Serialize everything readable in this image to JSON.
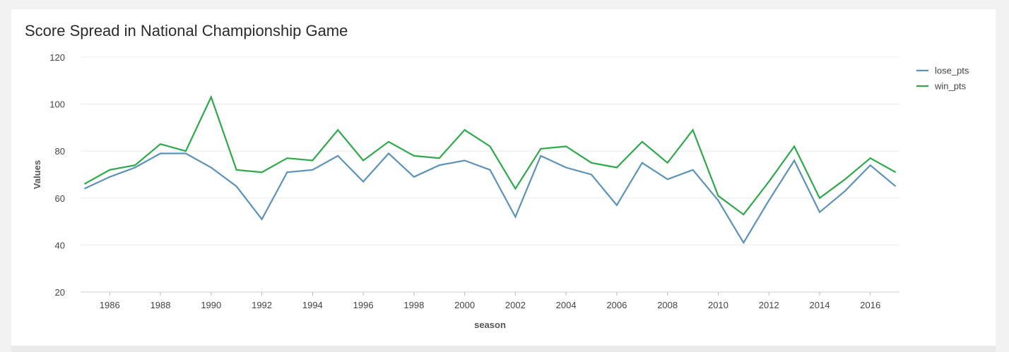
{
  "chart_data": {
    "type": "line",
    "title": "Score Spread in National Championship Game",
    "xlabel": "season",
    "ylabel": "Values",
    "ylim": [
      20,
      120
    ],
    "yticks": [
      "20",
      "40",
      "60",
      "80",
      "100",
      "120"
    ],
    "xticks": [
      "1986",
      "1988",
      "1990",
      "1992",
      "1994",
      "1996",
      "1998",
      "2000",
      "2002",
      "2004",
      "2006",
      "2008",
      "2010",
      "2012",
      "2014",
      "2016"
    ],
    "grid": true,
    "legend_position": "top-right",
    "x": [
      1985,
      1986,
      1987,
      1988,
      1989,
      1990,
      1991,
      1992,
      1993,
      1994,
      1995,
      1996,
      1997,
      1998,
      1999,
      2000,
      2001,
      2002,
      2003,
      2004,
      2005,
      2006,
      2007,
      2008,
      2009,
      2010,
      2011,
      2012,
      2013,
      2014,
      2015,
      2016,
      2017
    ],
    "series": [
      {
        "name": "lose_pts",
        "color": "#5b93b8",
        "values": [
          64,
          69,
          73,
          79,
          79,
          73,
          65,
          51,
          71,
          72,
          78,
          67,
          79,
          69,
          74,
          76,
          72,
          52,
          78,
          73,
          70,
          57,
          75,
          68,
          72,
          59,
          41,
          59,
          76,
          54,
          63,
          74,
          65
        ]
      },
      {
        "name": "win_pts",
        "color": "#2ea84a",
        "values": [
          66,
          72,
          74,
          83,
          80,
          103,
          72,
          71,
          77,
          76,
          89,
          76,
          84,
          78,
          77,
          89,
          82,
          64,
          81,
          82,
          75,
          73,
          84,
          75,
          89,
          61,
          53,
          67,
          82,
          60,
          68,
          77,
          71
        ]
      }
    ]
  }
}
